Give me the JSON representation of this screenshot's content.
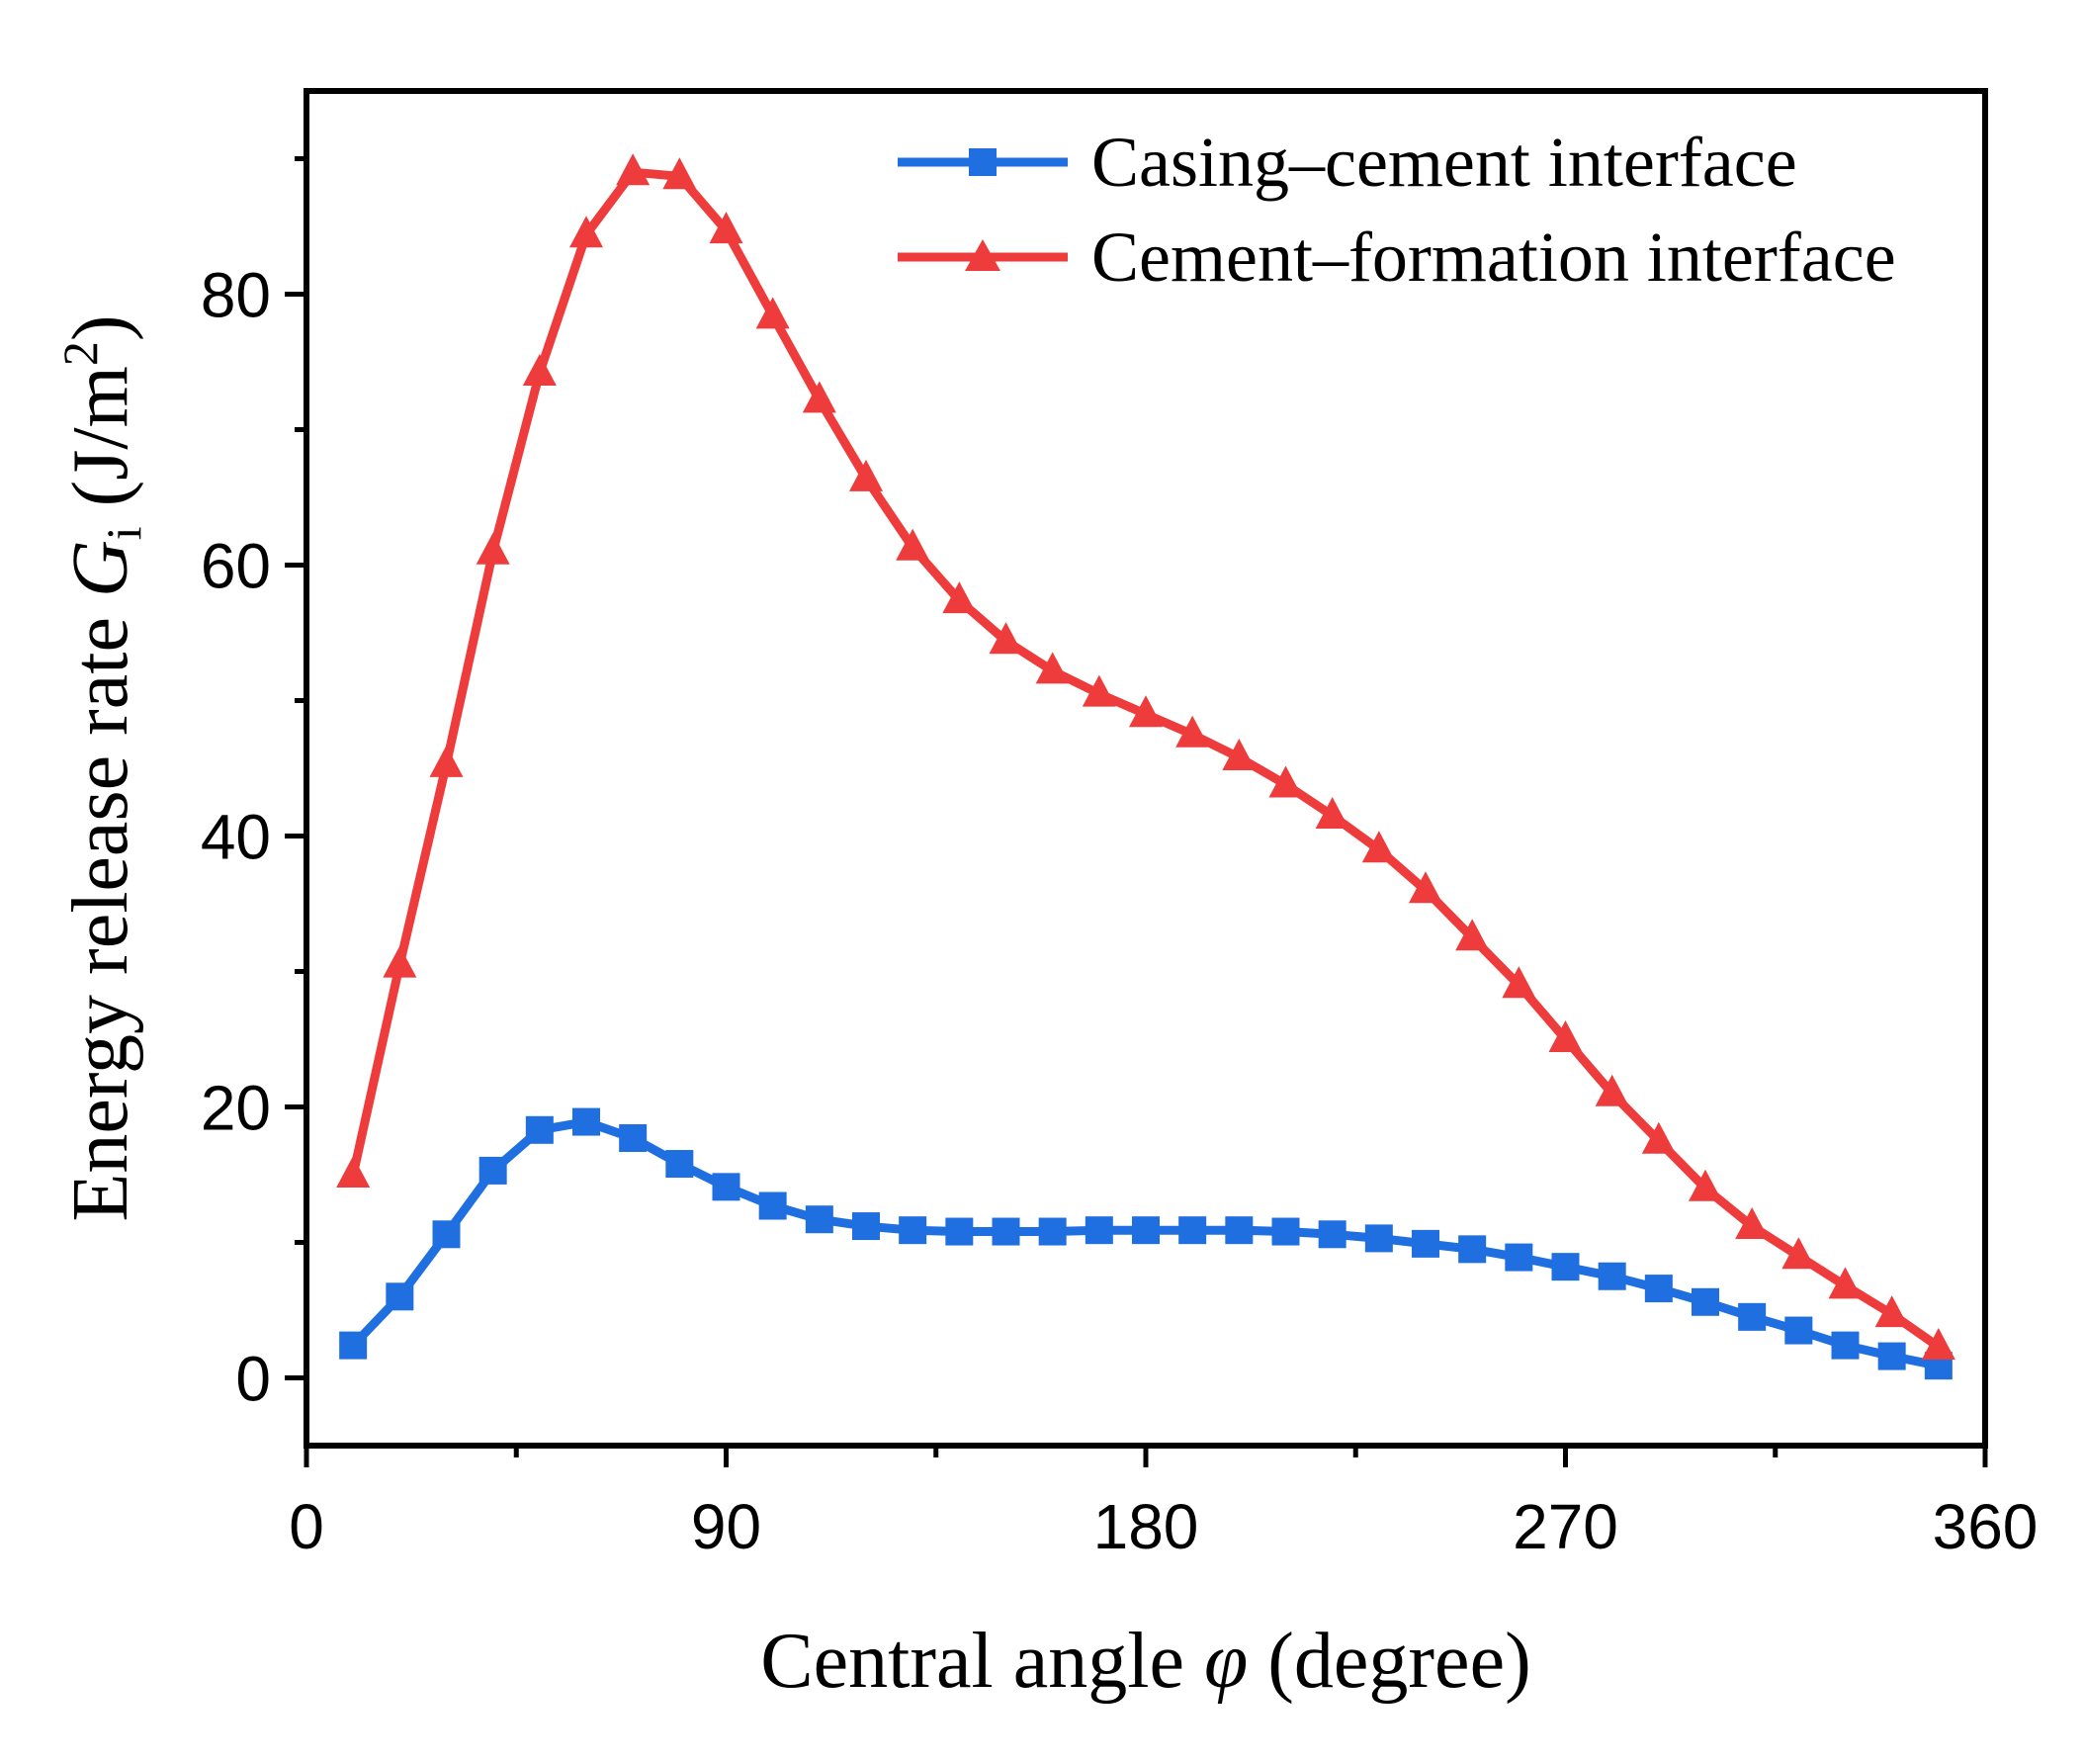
{
  "chart_data": {
    "type": "line",
    "title": "",
    "xlabel": {
      "prefix": "Central angle ",
      "symbol": "φ",
      "suffix": " (degree)"
    },
    "ylabel": {
      "prefix": "Energy release rate ",
      "symbol": "G",
      "subscript": "i",
      "unit_open": " (J/m",
      "unit_sup": "2",
      "unit_close": ")"
    },
    "xlim": [
      0,
      360
    ],
    "ylim": [
      -5,
      95
    ],
    "xticks": [
      0,
      90,
      180,
      270,
      360
    ],
    "xtick_labels": [
      "0",
      "90",
      "180",
      "270",
      "360"
    ],
    "yticks": [
      0,
      20,
      40,
      60,
      80
    ],
    "ytick_labels": [
      "0",
      "20",
      "40",
      "60",
      "80"
    ],
    "x_minor_ticks": [
      45,
      135,
      225,
      315
    ],
    "y_minor_ticks": [
      10,
      30,
      50,
      70,
      90
    ],
    "grid": false,
    "legend_position": "top-right",
    "x": [
      10,
      20,
      30,
      40,
      50,
      60,
      70,
      80,
      90,
      100,
      110,
      120,
      130,
      140,
      150,
      160,
      170,
      180,
      190,
      200,
      210,
      220,
      230,
      240,
      250,
      260,
      270,
      280,
      290,
      300,
      310,
      320,
      330,
      340,
      350
    ],
    "series": [
      {
        "name": "Casing–cement interface",
        "color": "#1f6fe0",
        "marker": "square",
        "values": [
          2.4,
          6.0,
          10.6,
          15.3,
          18.3,
          18.9,
          17.7,
          15.8,
          14.1,
          12.7,
          11.7,
          11.2,
          10.9,
          10.8,
          10.8,
          10.8,
          10.9,
          10.9,
          10.9,
          10.9,
          10.8,
          10.6,
          10.3,
          9.9,
          9.5,
          8.9,
          8.2,
          7.5,
          6.6,
          5.6,
          4.5,
          3.5,
          2.4,
          1.6,
          0.9
        ]
      },
      {
        "name": "Cement–formation interface",
        "color": "#ee3b3b",
        "marker": "triangle",
        "values": [
          15.0,
          30.5,
          45.3,
          61.0,
          74.2,
          84.4,
          89.0,
          88.7,
          84.7,
          78.4,
          72.2,
          66.4,
          61.3,
          57.4,
          54.4,
          52.2,
          50.5,
          49.0,
          47.5,
          45.8,
          43.8,
          41.5,
          39.0,
          36.0,
          32.5,
          29.0,
          25.0,
          21.0,
          17.5,
          14.0,
          11.2,
          9.0,
          6.8,
          4.7,
          2.3
        ]
      }
    ]
  }
}
